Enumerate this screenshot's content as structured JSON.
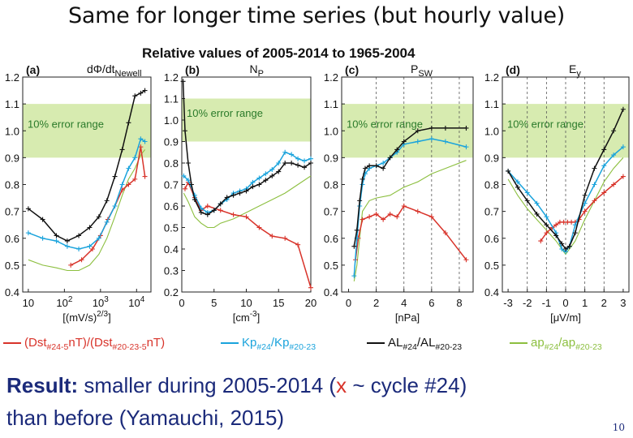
{
  "slide": {
    "title": "Same for longer time series (but hourly value)",
    "page_number": "10"
  },
  "figure": {
    "title": "Relative values of 2005-2014 to 1965-2004",
    "error_band_label": "10% error range"
  },
  "legend": {
    "dst": "(Dst#24-5nT)/(Dst#20-23-5nT)",
    "kp": "Kp#24/Kp#20-23",
    "al": "AL#24/AL#20-23",
    "ap": "ap#24/ap#20-23"
  },
  "result": {
    "lead": "Result:",
    "part1": " smaller during 2005-2014 (",
    "x": "x",
    "part2": " ~ cycle #24)",
    "line2": "than before (Yamauchi, 2015)"
  },
  "colors": {
    "dst": "#d8332a",
    "kp": "#1aa3dc",
    "al": "#111111",
    "ap": "#8cbf3f",
    "band": "#d7ebb0",
    "result_text": "#1b2a7a"
  },
  "chart_data": [
    {
      "type": "line",
      "panel": "(a)",
      "label": "dΦ/dt",
      "label_sub": "Newell",
      "xlabel": "[(mV/s)",
      "xlabel_sup": "2/3",
      "xlabel_end": "]",
      "xscale": "log",
      "xlim": [
        7,
        25000
      ],
      "ylim": [
        0.4,
        1.2
      ],
      "band": [
        0.9,
        1.1
      ],
      "x_ticks": [
        {
          "v": 10,
          "t": "10"
        },
        {
          "v": 100,
          "t": "10",
          "sup": "2"
        },
        {
          "v": 1000,
          "t": "10",
          "sup": "3"
        },
        {
          "v": 10000,
          "t": "10",
          "sup": "4"
        }
      ],
      "y_ticks": [
        0.4,
        0.5,
        0.6,
        0.7,
        0.8,
        0.9,
        1.0,
        1.1,
        1.2
      ],
      "vlines": [],
      "series": [
        {
          "name": "dst",
          "x": [
            150,
            300,
            600,
            1000,
            1600,
            2500,
            4000,
            6000,
            9000,
            13000,
            17000
          ],
          "y": [
            0.5,
            0.52,
            0.56,
            0.61,
            0.67,
            0.72,
            0.78,
            0.8,
            0.82,
            0.94,
            0.83
          ]
        },
        {
          "name": "kp",
          "x": [
            10,
            25,
            60,
            120,
            250,
            500,
            900,
            1500,
            2500,
            4000,
            6000,
            9000,
            13000,
            17000
          ],
          "y": [
            0.62,
            0.6,
            0.59,
            0.57,
            0.56,
            0.57,
            0.6,
            0.66,
            0.72,
            0.8,
            0.86,
            0.9,
            0.97,
            0.96
          ]
        },
        {
          "name": "al",
          "x": [
            10,
            25,
            60,
            120,
            250,
            500,
            900,
            1500,
            2500,
            4000,
            6000,
            9000,
            13000,
            17000
          ],
          "y": [
            0.71,
            0.67,
            0.61,
            0.59,
            0.61,
            0.64,
            0.68,
            0.74,
            0.83,
            0.93,
            1.03,
            1.13,
            1.14,
            1.15
          ]
        },
        {
          "name": "ap",
          "x": [
            10,
            25,
            60,
            120,
            250,
            500,
            900,
            1500,
            2500,
            4000,
            6000,
            9000,
            13000,
            17000
          ],
          "y": [
            0.52,
            0.5,
            0.49,
            0.48,
            0.48,
            0.5,
            0.54,
            0.6,
            0.68,
            0.76,
            0.82,
            0.86,
            0.91,
            0.93
          ]
        }
      ]
    },
    {
      "type": "line",
      "panel": "(b)",
      "label": "N",
      "label_sub": "P",
      "xlabel": "[cm",
      "xlabel_sup": "-3",
      "xlabel_end": "]",
      "xscale": "linear",
      "xlim": [
        0,
        20
      ],
      "ylim": [
        0.2,
        1.2
      ],
      "band": [
        0.9,
        1.1
      ],
      "x_ticks": [
        {
          "v": 0,
          "t": "0"
        },
        {
          "v": 5,
          "t": "5"
        },
        {
          "v": 10,
          "t": "10"
        },
        {
          "v": 15,
          "t": "15"
        },
        {
          "v": 20,
          "t": "20"
        }
      ],
      "y_ticks": [
        0.2,
        0.3,
        0.4,
        0.5,
        0.6,
        0.7,
        0.8,
        0.9,
        1.0,
        1.1,
        1.2
      ],
      "vlines": [],
      "series": [
        {
          "name": "dst",
          "x": [
            0.5,
            1,
            2,
            3,
            4,
            6,
            8,
            10,
            12,
            14,
            16,
            18,
            20
          ],
          "y": [
            0.68,
            0.71,
            0.64,
            0.58,
            0.6,
            0.58,
            0.56,
            0.55,
            0.5,
            0.46,
            0.45,
            0.42,
            0.22
          ]
        },
        {
          "name": "kp",
          "x": [
            0.3,
            1,
            2,
            3,
            4,
            5,
            6,
            7,
            8,
            9,
            10,
            11,
            12,
            13,
            14,
            15,
            16,
            17,
            18,
            19,
            20
          ],
          "y": [
            0.74,
            0.72,
            0.65,
            0.59,
            0.57,
            0.58,
            0.61,
            0.63,
            0.66,
            0.67,
            0.68,
            0.71,
            0.73,
            0.75,
            0.77,
            0.8,
            0.85,
            0.84,
            0.82,
            0.81,
            0.82
          ]
        },
        {
          "name": "al",
          "x": [
            0.2,
            0.5,
            1,
            1.5,
            2,
            3,
            4,
            5,
            6,
            7,
            8,
            9,
            10,
            11,
            12,
            13,
            14,
            15,
            16,
            17,
            18,
            19,
            20
          ],
          "y": [
            1.18,
            0.95,
            0.8,
            0.7,
            0.63,
            0.57,
            0.56,
            0.58,
            0.61,
            0.64,
            0.65,
            0.66,
            0.67,
            0.69,
            0.7,
            0.72,
            0.74,
            0.76,
            0.8,
            0.8,
            0.79,
            0.78,
            0.8
          ]
        },
        {
          "name": "ap",
          "x": [
            0.3,
            1,
            2,
            3,
            4,
            5,
            6,
            8,
            10,
            12,
            14,
            16,
            18,
            20
          ],
          "y": [
            0.66,
            0.62,
            0.55,
            0.52,
            0.5,
            0.5,
            0.52,
            0.54,
            0.57,
            0.6,
            0.63,
            0.66,
            0.7,
            0.74
          ]
        }
      ]
    },
    {
      "type": "line",
      "panel": "(c)",
      "label": "P",
      "label_sub": "SW",
      "xlabel": "[nPa]",
      "xlabel_sup": "",
      "xlabel_end": "",
      "xscale": "linear",
      "xlim": [
        -0.5,
        9
      ],
      "ylim": [
        0.4,
        1.2
      ],
      "band": [
        0.9,
        1.1
      ],
      "x_ticks": [
        {
          "v": 0,
          "t": "0"
        },
        {
          "v": 2,
          "t": "2"
        },
        {
          "v": 4,
          "t": "4"
        },
        {
          "v": 6,
          "t": "6"
        },
        {
          "v": 8,
          "t": "8"
        }
      ],
      "y_ticks": [
        0.4,
        0.5,
        0.6,
        0.7,
        0.8,
        0.9,
        1.0,
        1.1,
        1.2
      ],
      "vlines": [
        2,
        4,
        6,
        8
      ],
      "series": [
        {
          "name": "dst",
          "x": [
            0.5,
            0.7,
            1,
            1.5,
            2,
            2.5,
            3,
            3.5,
            4,
            5,
            6,
            7,
            8.5
          ],
          "y": [
            0.52,
            0.6,
            0.67,
            0.68,
            0.69,
            0.67,
            0.69,
            0.68,
            0.72,
            0.7,
            0.68,
            0.62,
            0.52
          ]
        },
        {
          "name": "kp",
          "x": [
            0.4,
            0.6,
            0.8,
            1,
            1.2,
            1.5,
            2,
            2.5,
            3,
            3.5,
            4,
            5,
            6,
            7,
            8.5
          ],
          "y": [
            0.46,
            0.6,
            0.72,
            0.8,
            0.84,
            0.86,
            0.87,
            0.88,
            0.9,
            0.92,
            0.95,
            0.96,
            0.97,
            0.96,
            0.94
          ]
        },
        {
          "name": "al",
          "x": [
            0.4,
            0.6,
            0.8,
            1,
            1.2,
            1.5,
            2,
            2.5,
            3,
            3.5,
            4,
            5,
            6,
            7,
            8.5
          ],
          "y": [
            0.57,
            0.63,
            0.74,
            0.82,
            0.86,
            0.87,
            0.87,
            0.86,
            0.9,
            0.93,
            0.96,
            1.0,
            1.01,
            1.01,
            1.01
          ]
        },
        {
          "name": "ap",
          "x": [
            0.4,
            0.6,
            0.8,
            1,
            1.5,
            2,
            3,
            4,
            5,
            6,
            7,
            8.5
          ],
          "y": [
            0.44,
            0.5,
            0.6,
            0.7,
            0.74,
            0.75,
            0.76,
            0.79,
            0.81,
            0.84,
            0.86,
            0.89
          ]
        }
      ]
    },
    {
      "type": "line",
      "panel": "(d)",
      "label": "E",
      "label_sub": "y",
      "xlabel": "[μV/m]",
      "xlabel_sup": "",
      "xlabel_end": "",
      "xscale": "linear",
      "xlim": [
        -3.3,
        3.3
      ],
      "ylim": [
        0.4,
        1.2
      ],
      "band": [
        0.9,
        1.1
      ],
      "x_ticks": [
        {
          "v": -3,
          "t": "-3"
        },
        {
          "v": -2,
          "t": "-2"
        },
        {
          "v": -1,
          "t": "-1"
        },
        {
          "v": 0,
          "t": "0"
        },
        {
          "v": 1,
          "t": "1"
        },
        {
          "v": 2,
          "t": "2"
        },
        {
          "v": 3,
          "t": "3"
        }
      ],
      "y_ticks": [
        0.4,
        0.5,
        0.6,
        0.7,
        0.8,
        0.9,
        1.0,
        1.1,
        1.2
      ],
      "vlines": [
        -2,
        -1,
        0,
        1,
        2
      ],
      "series": [
        {
          "name": "dst",
          "x": [
            -1.3,
            -1,
            -0.7,
            -0.5,
            -0.3,
            -0.1,
            0.1,
            0.3,
            0.5,
            0.7,
            1,
            1.5,
            2,
            2.5,
            3
          ],
          "y": [
            0.59,
            0.62,
            0.64,
            0.65,
            0.66,
            0.66,
            0.66,
            0.66,
            0.66,
            0.67,
            0.7,
            0.74,
            0.77,
            0.8,
            0.83
          ]
        },
        {
          "name": "kp",
          "x": [
            -3,
            -2.5,
            -2,
            -1.5,
            -1,
            -0.5,
            -0.2,
            0,
            0.2,
            0.5,
            1,
            1.5,
            2,
            2.5,
            3
          ],
          "y": [
            0.85,
            0.81,
            0.77,
            0.73,
            0.68,
            0.62,
            0.56,
            0.55,
            0.57,
            0.65,
            0.73,
            0.8,
            0.87,
            0.91,
            0.94
          ]
        },
        {
          "name": "al",
          "x": [
            -3,
            -2.5,
            -2,
            -1.5,
            -1,
            -0.5,
            -0.2,
            0,
            0.2,
            0.5,
            1,
            1.5,
            2,
            2.5,
            3
          ],
          "y": [
            0.85,
            0.79,
            0.74,
            0.69,
            0.65,
            0.61,
            0.58,
            0.56,
            0.57,
            0.62,
            0.76,
            0.86,
            0.93,
            1.0,
            1.08
          ]
        },
        {
          "name": "ap",
          "x": [
            -3,
            -2.5,
            -2,
            -1.5,
            -1,
            -0.5,
            0,
            0.5,
            1,
            1.5,
            2,
            2.5,
            3
          ],
          "y": [
            0.82,
            0.76,
            0.71,
            0.67,
            0.63,
            0.59,
            0.54,
            0.59,
            0.67,
            0.74,
            0.81,
            0.86,
            0.9
          ]
        }
      ]
    }
  ]
}
